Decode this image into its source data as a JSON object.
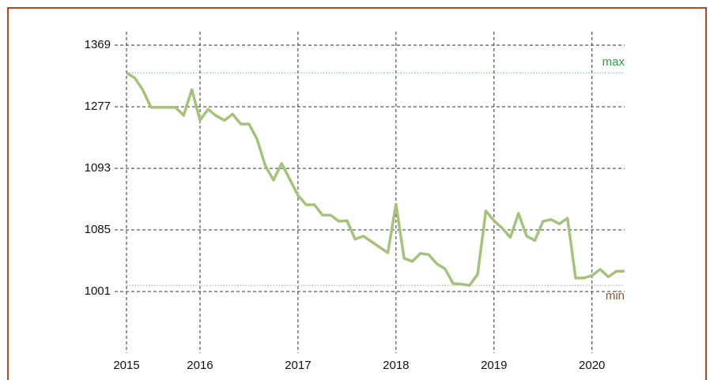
{
  "chart_data": {
    "type": "line",
    "x": [
      2015.25,
      2015.333,
      2015.417,
      2015.5,
      2015.583,
      2015.667,
      2015.75,
      2015.833,
      2015.917,
      2016,
      2016.083,
      2016.167,
      2016.25,
      2016.333,
      2016.417,
      2016.5,
      2016.583,
      2016.667,
      2016.75,
      2016.833,
      2016.917,
      2017,
      2017.083,
      2017.167,
      2017.25,
      2017.333,
      2017.417,
      2017.5,
      2017.583,
      2017.667,
      2017.75,
      2017.833,
      2017.917,
      2018,
      2018.083,
      2018.167,
      2018.25,
      2018.333,
      2018.417,
      2018.5,
      2018.583,
      2018.667,
      2018.75,
      2018.833,
      2018.917,
      2019,
      2019.083,
      2019.167,
      2019.25,
      2019.333,
      2019.417,
      2019.5,
      2019.583,
      2019.667,
      2019.75,
      2019.833,
      2019.917,
      2020,
      2020.083,
      2020.167,
      2020.25,
      2020.333
    ],
    "series": [
      {
        "color": "#a5c27b",
        "values": [
          4.55,
          4.47,
          4.27,
          3.99,
          3.99,
          3.99,
          3.99,
          3.86,
          4.28,
          3.78,
          3.96,
          3.85,
          3.78,
          3.88,
          3.72,
          3.72,
          3.47,
          3.04,
          2.81,
          3.08,
          2.82,
          2.56,
          2.41,
          2.41,
          2.24,
          2.24,
          2.14,
          2.15,
          1.85,
          1.9,
          1.81,
          1.72,
          1.63,
          2.42,
          1.54,
          1.49,
          1.62,
          1.6,
          1.45,
          1.37,
          1.13,
          1.12,
          1.1,
          1.28,
          2.31,
          2.15,
          2.03,
          1.88,
          2.27,
          1.9,
          1.83,
          2.14,
          2.17,
          2.1,
          2.19,
          1.22,
          1.22,
          1.26,
          1.36,
          1.24,
          1.33,
          1.33
        ]
      }
    ],
    "xlim": [
      2015.25,
      2020.333
    ],
    "xticks": [
      {
        "value": 2015.25,
        "label": "2015"
      },
      {
        "value": 2016,
        "label": "2016"
      },
      {
        "value": 2017,
        "label": "2017"
      },
      {
        "value": 2018,
        "label": "2018"
      },
      {
        "value": 2019,
        "label": "2019"
      },
      {
        "value": 2020,
        "label": "2020"
      }
    ],
    "ylim": [
      0,
      5.22
    ],
    "yticks": [
      {
        "value": 1,
        "label": "1001"
      },
      {
        "value": 2,
        "label": "1085"
      },
      {
        "value": 3,
        "label": "1093"
      },
      {
        "value": 4,
        "label": "1277"
      },
      {
        "value": 5,
        "label": "1369"
      }
    ],
    "grid": true,
    "reference_lines": [
      {
        "label": "max",
        "value": 4.55,
        "color": "#2e9a4a",
        "line_color": "#6bbf8a"
      },
      {
        "label": "min",
        "value": 1.1,
        "color": "#8a5a3a",
        "line_color": "#e08a7a"
      }
    ]
  }
}
